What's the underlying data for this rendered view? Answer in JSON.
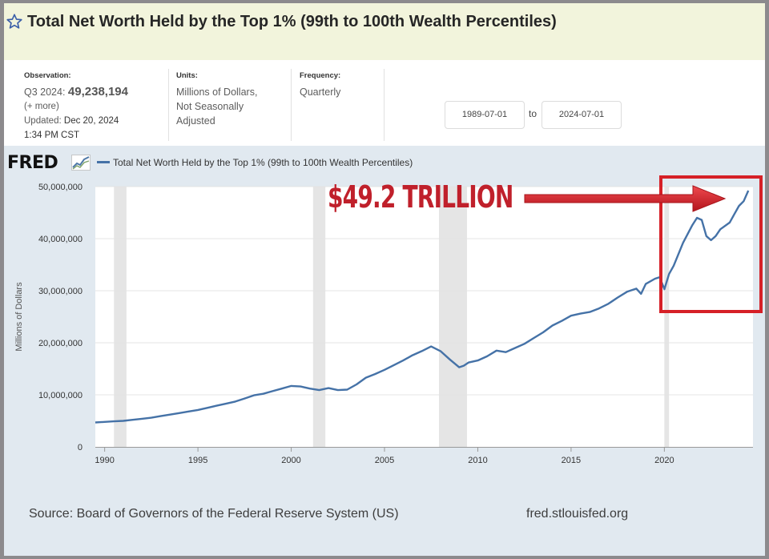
{
  "header": {
    "title": "Total Net Worth Held by the Top 1% (99th to 100th Wealth Percentiles)"
  },
  "observation": {
    "label": "Observation:",
    "period": "Q3 2024:",
    "value": "49,238,194",
    "more": "(+ more)",
    "updated_label": "Updated:",
    "updated_date": "Dec 20, 2024",
    "updated_time": "1:34 PM CST"
  },
  "units": {
    "label": "Units:",
    "line1": "Millions of Dollars,",
    "line2": "Not Seasonally",
    "line3": "Adjusted"
  },
  "frequency": {
    "label": "Frequency:",
    "value": "Quarterly"
  },
  "date_range": {
    "start": "1989-07-01",
    "to_label": "to",
    "end": "2024-07-01"
  },
  "logo": {
    "text": "FRED"
  },
  "annotation": {
    "text": "$49.2 TRILLION",
    "color": "#d62027"
  },
  "footer": {
    "source": "Source: Board of Governors of the Federal Reserve System (US)",
    "site": "fred.stlouisfed.org"
  },
  "colors": {
    "series": "#4572a7",
    "recession": "#e5e5e5",
    "header_band": "#f2f4dc",
    "chart_panel": "#e1e9f0"
  },
  "chart_data": {
    "type": "line",
    "title": "",
    "xlabel": "",
    "ylabel": "Millions of Dollars",
    "xlim": [
      1989.5,
      2024.75
    ],
    "ylim": [
      0,
      50000000
    ],
    "y_ticks": [
      {
        "value": 0,
        "label": "0"
      },
      {
        "value": 10000000,
        "label": "10,000,000"
      },
      {
        "value": 20000000,
        "label": "20,000,000"
      },
      {
        "value": 30000000,
        "label": "30,000,000"
      },
      {
        "value": 40000000,
        "label": "40,000,000"
      },
      {
        "value": 50000000,
        "label": "50,000,000"
      }
    ],
    "x_ticks": [
      {
        "value": 1990,
        "label": "1990"
      },
      {
        "value": 1995,
        "label": "1995"
      },
      {
        "value": 2000,
        "label": "2000"
      },
      {
        "value": 2005,
        "label": "2005"
      },
      {
        "value": 2010,
        "label": "2010"
      },
      {
        "value": 2015,
        "label": "2015"
      },
      {
        "value": 2020,
        "label": "2020"
      }
    ],
    "recessions": [
      [
        1990.5,
        1991.17
      ],
      [
        2001.17,
        2001.83
      ],
      [
        2007.92,
        2009.42
      ],
      [
        2020.0,
        2020.25
      ]
    ],
    "grid": true,
    "legend": "top-left",
    "series": [
      {
        "name": "Total Net Worth Held by the Top 1% (99th to 100th Wealth Percentiles)",
        "x": [
          1989.5,
          1990.0,
          1990.5,
          1991.0,
          1991.5,
          1992.0,
          1992.5,
          1993.0,
          1993.5,
          1994.0,
          1994.5,
          1995.0,
          1995.5,
          1996.0,
          1996.5,
          1997.0,
          1997.5,
          1998.0,
          1998.5,
          1999.0,
          1999.5,
          2000.0,
          2000.5,
          2001.0,
          2001.5,
          2002.0,
          2002.5,
          2003.0,
          2003.5,
          2004.0,
          2004.5,
          2005.0,
          2005.5,
          2006.0,
          2006.5,
          2007.0,
          2007.5,
          2008.0,
          2008.5,
          2009.0,
          2009.25,
          2009.5,
          2010.0,
          2010.5,
          2011.0,
          2011.5,
          2012.0,
          2012.5,
          2013.0,
          2013.5,
          2014.0,
          2014.5,
          2015.0,
          2015.5,
          2016.0,
          2016.5,
          2017.0,
          2017.5,
          2018.0,
          2018.5,
          2018.75,
          2019.0,
          2019.5,
          2019.75,
          2020.0,
          2020.25,
          2020.5,
          2021.0,
          2021.5,
          2021.75,
          2022.0,
          2022.25,
          2022.5,
          2022.75,
          2023.0,
          2023.5,
          2023.75,
          2024.0,
          2024.25,
          2024.5
        ],
        "values": [
          4700000,
          4800000,
          4900000,
          5000000,
          5200000,
          5400000,
          5600000,
          5900000,
          6200000,
          6500000,
          6800000,
          7100000,
          7500000,
          7900000,
          8300000,
          8700000,
          9300000,
          9900000,
          10200000,
          10700000,
          11200000,
          11700000,
          11600000,
          11200000,
          10900000,
          11300000,
          10900000,
          11000000,
          12000000,
          13300000,
          14000000,
          14800000,
          15700000,
          16600000,
          17600000,
          18400000,
          19300000,
          18400000,
          16800000,
          15300000,
          15600000,
          16200000,
          16600000,
          17400000,
          18500000,
          18200000,
          19000000,
          19800000,
          20900000,
          22000000,
          23300000,
          24200000,
          25200000,
          25600000,
          25900000,
          26600000,
          27500000,
          28700000,
          29800000,
          30400000,
          29400000,
          31300000,
          32300000,
          32600000,
          30300000,
          33200000,
          34800000,
          39200000,
          42600000,
          44000000,
          43600000,
          40500000,
          39700000,
          40500000,
          41800000,
          43100000,
          44700000,
          46300000,
          47200000,
          49238194
        ]
      }
    ]
  }
}
